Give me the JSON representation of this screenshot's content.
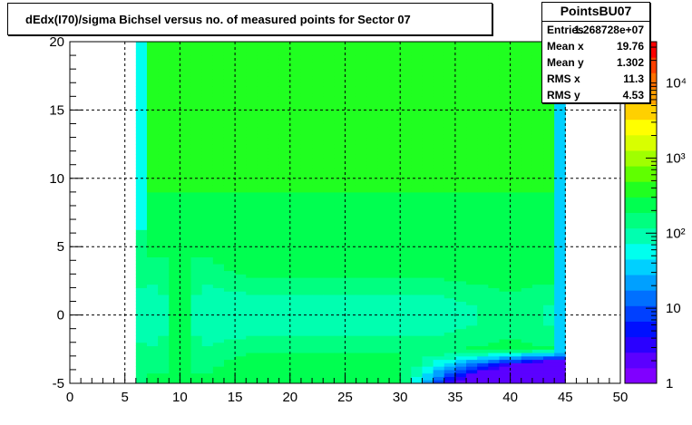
{
  "title": "dEdx(I70)/sigma Bichsel versus no. of measured points for Sector 07",
  "stats": {
    "name": "PointsBU07",
    "rows": [
      {
        "key": "Entries",
        "value": "1.268728e+07"
      },
      {
        "key": "Mean x",
        "value": "19.76"
      },
      {
        "key": "Mean y",
        "value": "1.302"
      },
      {
        "key": "RMS x",
        "value": "11.3"
      },
      {
        "key": "RMS y",
        "value": "4.53"
      }
    ]
  },
  "chart_data": {
    "type": "heatmap",
    "title": "dEdx(I70)/sigma Bichsel versus no. of measured points for Sector 07",
    "xlabel": "",
    "ylabel": "",
    "xlim": [
      0,
      50
    ],
    "ylim": [
      -5,
      20
    ],
    "x_ticks": [
      0,
      5,
      10,
      15,
      20,
      25,
      30,
      35,
      40,
      45,
      50
    ],
    "y_ticks": [
      -5,
      0,
      5,
      10,
      15,
      20
    ],
    "grid": true,
    "z_scale": "log",
    "z_ticks": [
      "1",
      "10",
      "10²",
      "10³",
      "10⁴"
    ],
    "filled_x_range": [
      6,
      45
    ],
    "band_center_y": 0,
    "peak_x": 10,
    "palette": [
      "#8000ff",
      "#5b00ff",
      "#2a00ff",
      "#0010ff",
      "#0040ff",
      "#0070ff",
      "#00a0ff",
      "#00d0ff",
      "#00ffee",
      "#00ffb0",
      "#00ff80",
      "#00ff50",
      "#20ff20",
      "#60ff00",
      "#a0ff00",
      "#d8ff00",
      "#ffff00",
      "#ffd000",
      "#ffa000",
      "#ff7000",
      "#ff4000",
      "#ff0000"
    ]
  }
}
